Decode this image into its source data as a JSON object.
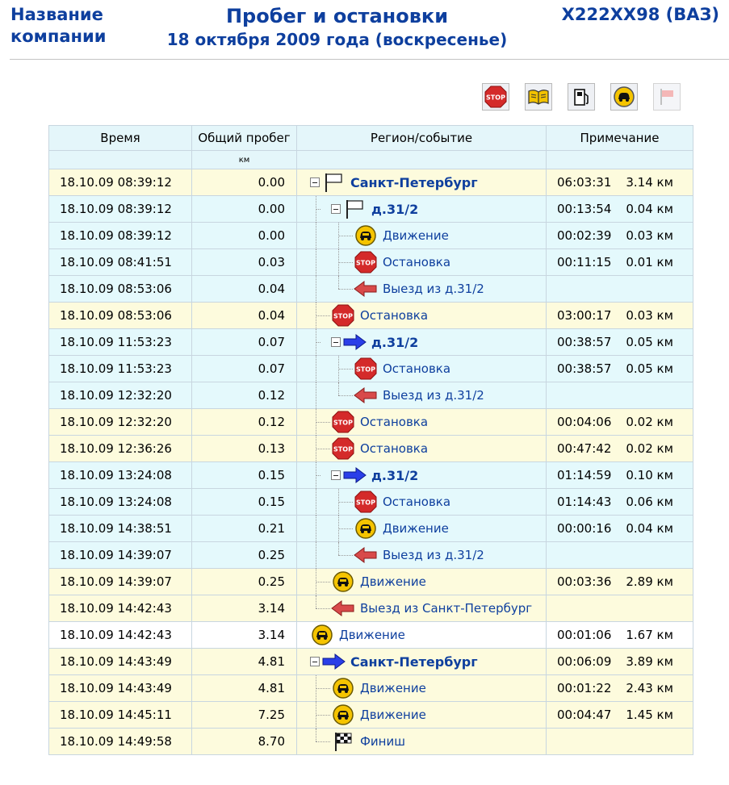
{
  "header": {
    "company_line1": "Название",
    "company_line2": "компании",
    "title": "Пробег и остановки",
    "subtitle": "18 октября 2009 года (воскресенье)",
    "vehicle": "Х222ХХ98 (ВАЗ)"
  },
  "toolbar": {
    "items": [
      {
        "name": "stop-filter-icon",
        "label": "STOP"
      },
      {
        "name": "book-filter-icon",
        "label": ""
      },
      {
        "name": "fuel-filter-icon",
        "label": ""
      },
      {
        "name": "movement-filter-icon",
        "label": ""
      },
      {
        "name": "flag-filter-icon",
        "label": ""
      }
    ]
  },
  "table": {
    "columns": [
      "Время",
      "Общий пробег",
      "Регион/событие",
      "Примечание"
    ],
    "units": [
      "",
      "км",
      "",
      ""
    ],
    "rows": [
      {
        "time": "18.10.09 08:39:12",
        "km": "0.00",
        "level": 0,
        "tree": "root-expander",
        "icon": "flag",
        "label": "Санкт-Петербург",
        "bold": true,
        "dur": "06:03:31",
        "dist": "3.14 км"
      },
      {
        "time": "18.10.09 08:39:12",
        "km": "0.00",
        "level": 1,
        "tree": "expander",
        "icon": "flag",
        "label": "д.31/2",
        "bold": true,
        "dur": "00:13:54",
        "dist": "0.04 км"
      },
      {
        "time": "18.10.09 08:39:12",
        "km": "0.00",
        "level": 2,
        "tree": "leaf",
        "icon": "car",
        "label": "Движение",
        "bold": false,
        "dur": "00:02:39",
        "dist": "0.03 км"
      },
      {
        "time": "18.10.09 08:41:51",
        "km": "0.03",
        "level": 2,
        "tree": "leaf",
        "icon": "stop",
        "label": "Остановка",
        "bold": false,
        "dur": "00:11:15",
        "dist": "0.01 км"
      },
      {
        "time": "18.10.09 08:53:06",
        "km": "0.04",
        "level": 2,
        "tree": "leaf-last",
        "icon": "exit",
        "label": "Выезд из д.31/2",
        "bold": false,
        "dur": "",
        "dist": ""
      },
      {
        "time": "18.10.09 08:53:06",
        "km": "0.04",
        "level": 1,
        "tree": "leaf",
        "icon": "stop",
        "label": "Остановка",
        "bold": false,
        "dur": "03:00:17",
        "dist": "0.03 км"
      },
      {
        "time": "18.10.09 11:53:23",
        "km": "0.07",
        "level": 1,
        "tree": "expander",
        "icon": "enter",
        "label": "д.31/2",
        "bold": true,
        "dur": "00:38:57",
        "dist": "0.05 км"
      },
      {
        "time": "18.10.09 11:53:23",
        "km": "0.07",
        "level": 2,
        "tree": "leaf",
        "icon": "stop",
        "label": "Остановка",
        "bold": false,
        "dur": "00:38:57",
        "dist": "0.05 км"
      },
      {
        "time": "18.10.09 12:32:20",
        "km": "0.12",
        "level": 2,
        "tree": "leaf-last",
        "icon": "exit",
        "label": "Выезд из д.31/2",
        "bold": false,
        "dur": "",
        "dist": ""
      },
      {
        "time": "18.10.09 12:32:20",
        "km": "0.12",
        "level": 1,
        "tree": "leaf",
        "icon": "stop",
        "label": "Остановка",
        "bold": false,
        "dur": "00:04:06",
        "dist": "0.02 км"
      },
      {
        "time": "18.10.09 12:36:26",
        "km": "0.13",
        "level": 1,
        "tree": "leaf",
        "icon": "stop",
        "label": "Остановка",
        "bold": false,
        "dur": "00:47:42",
        "dist": "0.02 км"
      },
      {
        "time": "18.10.09 13:24:08",
        "km": "0.15",
        "level": 1,
        "tree": "expander",
        "icon": "enter",
        "label": "д.31/2",
        "bold": true,
        "dur": "01:14:59",
        "dist": "0.10 км"
      },
      {
        "time": "18.10.09 13:24:08",
        "km": "0.15",
        "level": 2,
        "tree": "leaf",
        "icon": "stop",
        "label": "Остановка",
        "bold": false,
        "dur": "01:14:43",
        "dist": "0.06 км"
      },
      {
        "time": "18.10.09 14:38:51",
        "km": "0.21",
        "level": 2,
        "tree": "leaf",
        "icon": "car",
        "label": "Движение",
        "bold": false,
        "dur": "00:00:16",
        "dist": "0.04 км"
      },
      {
        "time": "18.10.09 14:39:07",
        "km": "0.25",
        "level": 2,
        "tree": "leaf-last",
        "icon": "exit",
        "label": "Выезд из д.31/2",
        "bold": false,
        "dur": "",
        "dist": ""
      },
      {
        "time": "18.10.09 14:39:07",
        "km": "0.25",
        "level": 1,
        "tree": "leaf",
        "icon": "car",
        "label": "Движение",
        "bold": false,
        "dur": "00:03:36",
        "dist": "2.89 км"
      },
      {
        "time": "18.10.09 14:42:43",
        "km": "3.14",
        "level": 1,
        "tree": "leaf-last",
        "icon": "exit",
        "label": "Выезд из Санкт-Петербург",
        "bold": false,
        "dur": "",
        "dist": ""
      },
      {
        "time": "18.10.09 14:42:43",
        "km": "3.14",
        "level": -1,
        "tree": "none",
        "icon": "car",
        "label": "Движение",
        "bold": false,
        "dur": "00:01:06",
        "dist": "1.67 км"
      },
      {
        "time": "18.10.09 14:43:49",
        "km": "4.81",
        "level": 0,
        "tree": "root-expander",
        "icon": "enter",
        "label": "Санкт-Петербург",
        "bold": true,
        "dur": "00:06:09",
        "dist": "3.89 км"
      },
      {
        "time": "18.10.09 14:43:49",
        "km": "4.81",
        "level": 1,
        "tree": "leaf",
        "icon": "car",
        "label": "Движение",
        "bold": false,
        "dur": "00:01:22",
        "dist": "2.43 км"
      },
      {
        "time": "18.10.09 14:45:11",
        "km": "7.25",
        "level": 1,
        "tree": "leaf",
        "icon": "car",
        "label": "Движение",
        "bold": false,
        "dur": "00:04:47",
        "dist": "1.45 км"
      },
      {
        "time": "18.10.09 14:49:58",
        "km": "8.70",
        "level": 1,
        "tree": "leaf-last",
        "icon": "finish",
        "label": "Финиш",
        "bold": false,
        "dur": "",
        "dist": ""
      }
    ]
  },
  "colors": {
    "title_blue": "#0e3f9e",
    "row_region": "#fdfbdd",
    "row_place": "#e4f9fc",
    "row_plain": "#ffffff",
    "header_bg": "#e4f6fa",
    "stop_red": "#d42a2a",
    "arrow_blue": "#2a3fe8",
    "arrow_red": "#d84a4a",
    "car_yellow": "#f5c400"
  }
}
